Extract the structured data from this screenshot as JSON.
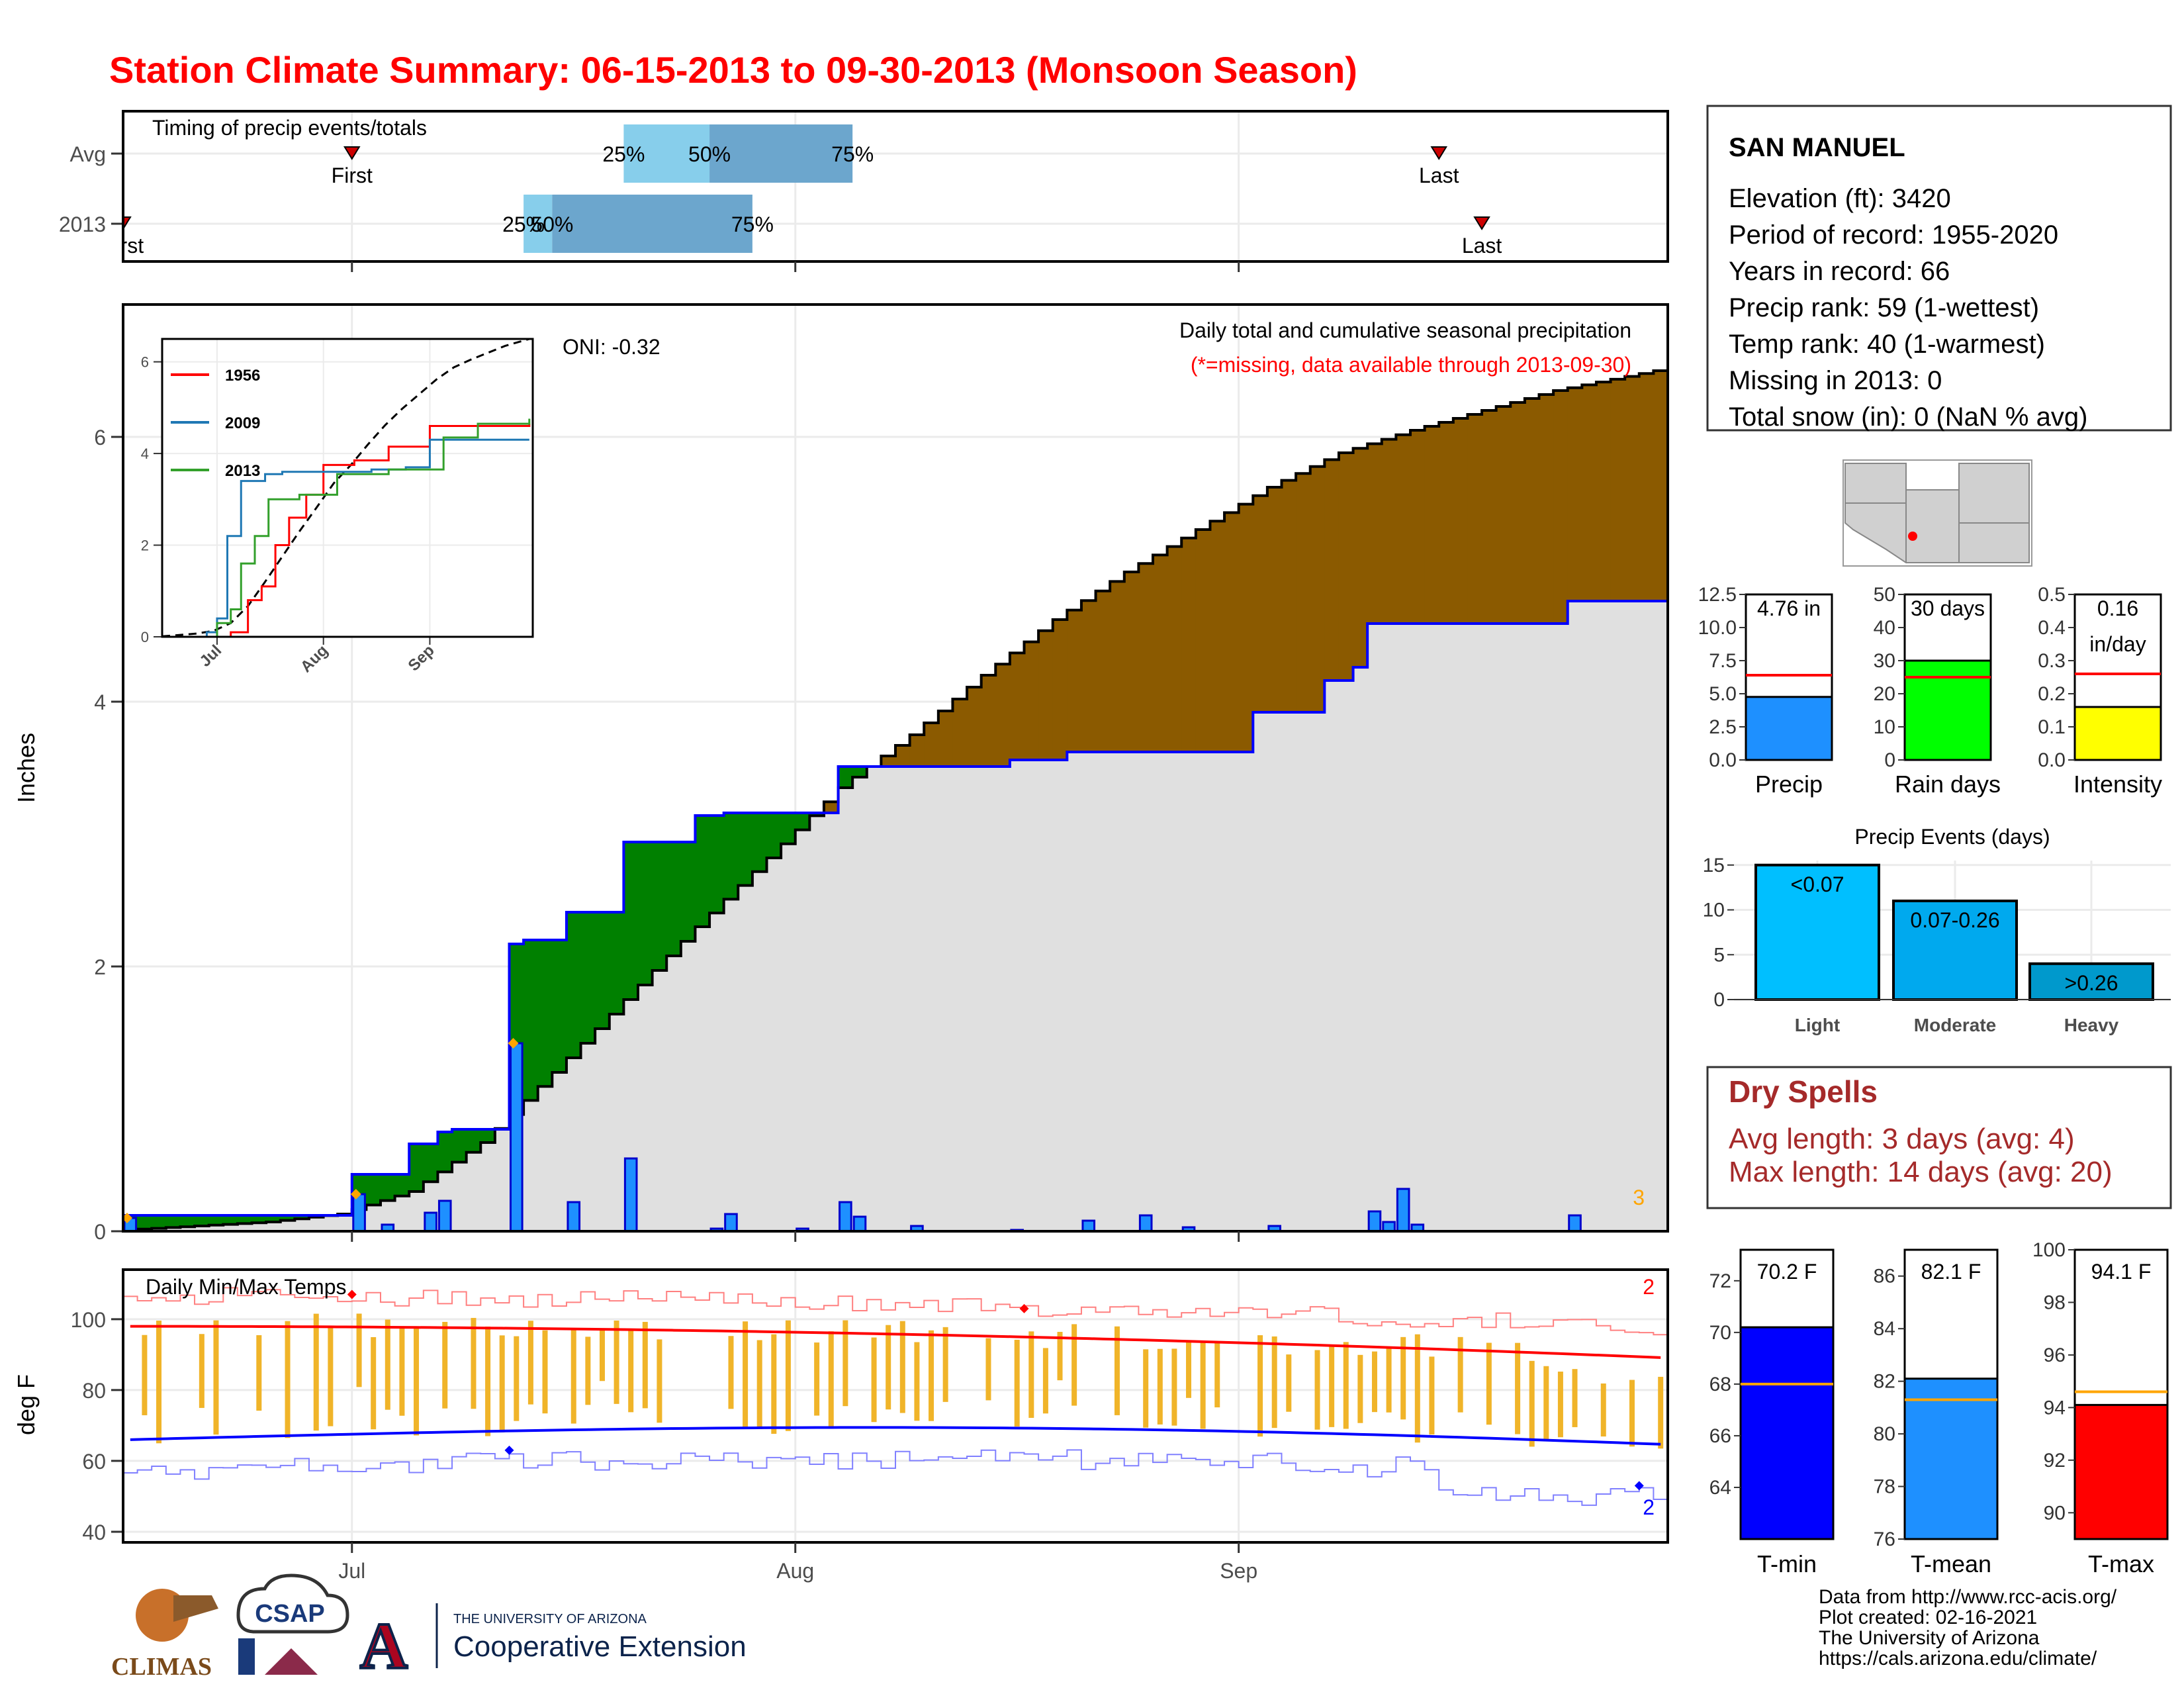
{
  "title": "Station Climate Summary: 06-15-2013 to 09-30-2013 (Monsoon Season)",
  "timing": {
    "label": "Timing of precip events/totals",
    "rows": [
      "Avg",
      "2013"
    ],
    "avg": {
      "first": "2013-07-01",
      "p25": "2013-07-20",
      "p50": "2013-07-26",
      "p75": "2013-08-05",
      "last": "2013-09-15"
    },
    "y2013": {
      "first": "2013-06-15",
      "p25": "2013-07-13",
      "p50": "2013-07-15",
      "p75": "2013-07-29",
      "last": "2013-09-18"
    },
    "labels": {
      "first": "First",
      "last": "Last",
      "p25": "25%",
      "p50": "50%",
      "p75": "75%"
    },
    "first_2013_text": "First",
    "colors": {
      "light": "#87ceeb",
      "dark": "#6ca6cd",
      "marker": "#cc0000"
    }
  },
  "precip_panel": {
    "ylabel": "Inches",
    "yticks": [
      "0",
      "2",
      "4",
      "6"
    ],
    "oni": "ONI: -0.32",
    "note1": "Daily total and cumulative seasonal precipitation",
    "note2": "(*=missing, data available through 2013-09-30)",
    "corner_count": "3",
    "colors": {
      "above": "#008000",
      "below": "#8b5a00",
      "fill": "#e0e0e0",
      "bars": "#1e90ff",
      "obs_line": "#0000ff"
    }
  },
  "inset": {
    "yticks": [
      "0",
      "2",
      "4",
      "6"
    ],
    "xticks": [
      "Jul",
      "Aug",
      "Sep"
    ],
    "legend": [
      "1956",
      "2009",
      "2013"
    ],
    "colors": [
      "#ff0000",
      "#1f78b4",
      "#33a02c"
    ]
  },
  "temp_panel": {
    "ylabel": "deg F",
    "title": "Daily Min/Max Temps",
    "yticks": [
      "40",
      "60",
      "80",
      "100"
    ],
    "xticks": [
      "Jul",
      "Aug",
      "Sep"
    ],
    "count_max": "2",
    "count_min": "2"
  },
  "station": {
    "name": "SAN MANUEL",
    "lines": [
      "Elevation (ft): 3420",
      "Period of record: 1955-2020",
      "Years in record: 66",
      "Precip rank: 59 (1-wettest)",
      "Temp rank: 40 (1-warmest)",
      "Missing in 2013: 0",
      "Total snow (in): 0 (NaN % avg)"
    ]
  },
  "small_bars": [
    {
      "label": "Precip",
      "value_text": "4.76 in",
      "value": 4.76,
      "avg": 6.4,
      "ymax": 12.5,
      "yticks": [
        "0.0",
        "2.5",
        "5.0",
        "7.5",
        "10.0",
        "12.5"
      ],
      "color": "#1e90ff"
    },
    {
      "label": "Rain days",
      "value_text": "30 days",
      "value": 30,
      "avg": 25,
      "ymax": 50,
      "yticks": [
        "0",
        "10",
        "20",
        "30",
        "40",
        "50"
      ],
      "color": "#00ff00"
    },
    {
      "label": "Intensity",
      "value_text": "0.16",
      "value_text2": "in/day",
      "value": 0.16,
      "avg": 0.26,
      "ymax": 0.5,
      "yticks": [
        "0.0",
        "0.1",
        "0.2",
        "0.3",
        "0.4",
        "0.5"
      ],
      "color": "#ffff00"
    }
  ],
  "precip_events": {
    "title": "Precip Events (days)",
    "yticks": [
      "0",
      "5",
      "10",
      "15"
    ],
    "categories": [
      "Light",
      "Moderate",
      "Heavy"
    ],
    "bar_labels": [
      "<0.07",
      "0.07-0.26",
      ">0.26"
    ],
    "values": [
      15,
      11,
      4
    ],
    "colors": [
      "#00bfff",
      "#00a9ee",
      "#0099cc"
    ]
  },
  "dry_spells": {
    "title": "Dry Spells",
    "avg_line": "Avg length: 3 days (avg: 4)",
    "max_line": "Max length: 14 days (avg: 20)"
  },
  "temp_bars": [
    {
      "label": "T-min",
      "value_text": "70.2 F",
      "value": 70.2,
      "avg": 68.0,
      "ymin": 62,
      "ymax": 73.2,
      "yticks": [
        "64",
        "66",
        "68",
        "70",
        "72"
      ],
      "color": "#0000ff"
    },
    {
      "label": "T-mean",
      "value_text": "82.1 F",
      "value": 82.1,
      "avg": 81.3,
      "ymin": 76,
      "ymax": 87.0,
      "yticks": [
        "76",
        "78",
        "80",
        "82",
        "84",
        "86"
      ],
      "color": "#1e90ff"
    },
    {
      "label": "T-max",
      "value_text": "94.1 F",
      "value": 94.1,
      "avg": 94.6,
      "ymin": 89,
      "ymax": 100.0,
      "yticks": [
        "90",
        "92",
        "94",
        "96",
        "98",
        "100"
      ],
      "color": "#ff0000"
    }
  ],
  "footer": [
    "Data from http://www.rcc-acis.org/",
    "Plot created: 02-16-2021",
    "The University of Arizona",
    "https://cals.arizona.edu/climate/"
  ],
  "logos": {
    "climas": "CLIMAS",
    "csap": "CSAP",
    "ua_small": "THE UNIVERSITY OF ARIZONA",
    "ua_big": "Cooperative Extension"
  },
  "chart_data": {
    "type": "area",
    "title": "Daily total and cumulative seasonal precipitation",
    "ylabel": "Inches",
    "xlabel": "",
    "ylim": [
      0,
      7.0
    ],
    "x_start": "2013-06-15",
    "x_end": "2013-09-30",
    "series": [
      {
        "name": "2013 cumulative",
        "x": [
          "2013-06-15",
          "2013-06-30",
          "2013-07-01",
          "2013-07-05",
          "2013-07-07",
          "2013-07-08",
          "2013-07-12",
          "2013-07-13",
          "2013-07-16",
          "2013-07-20",
          "2013-07-25",
          "2013-07-27",
          "2013-08-04",
          "2013-08-16",
          "2013-08-20",
          "2013-09-02",
          "2013-09-07",
          "2013-09-09",
          "2013-09-10",
          "2013-09-24",
          "2013-09-30"
        ],
        "values": [
          0.12,
          0.12,
          0.43,
          0.66,
          0.75,
          0.77,
          2.17,
          2.2,
          2.41,
          2.94,
          3.14,
          3.16,
          3.51,
          3.56,
          3.62,
          3.92,
          4.16,
          4.26,
          4.59,
          4.76,
          4.76
        ]
      },
      {
        "name": "Average cumulative",
        "x": [
          "2013-06-15",
          "2013-06-20",
          "2013-06-25",
          "2013-06-30",
          "2013-07-05",
          "2013-07-10",
          "2013-07-15",
          "2013-07-20",
          "2013-07-25",
          "2013-07-30",
          "2013-08-04",
          "2013-08-09",
          "2013-08-14",
          "2013-08-19",
          "2013-08-24",
          "2013-08-29",
          "2013-09-03",
          "2013-09-08",
          "2013-09-13",
          "2013-09-18",
          "2013-09-23",
          "2013-09-30"
        ],
        "values": [
          0.01,
          0.04,
          0.07,
          0.13,
          0.3,
          0.67,
          1.2,
          1.75,
          2.3,
          2.82,
          3.35,
          3.75,
          4.2,
          4.62,
          4.98,
          5.3,
          5.62,
          5.88,
          6.05,
          6.2,
          6.35,
          6.5
        ]
      },
      {
        "name": "Daily precip",
        "x": [
          "2013-06-15",
          "2013-07-01",
          "2013-07-03",
          "2013-07-06",
          "2013-07-07",
          "2013-07-12",
          "2013-07-16",
          "2013-07-20",
          "2013-07-26",
          "2013-07-27",
          "2013-08-01",
          "2013-08-04",
          "2013-08-05",
          "2013-08-09",
          "2013-08-16",
          "2013-08-21",
          "2013-08-25",
          "2013-08-28",
          "2013-09-03",
          "2013-09-10",
          "2013-09-11",
          "2013-09-12",
          "2013-09-13",
          "2013-09-24"
        ],
        "values": [
          0.1,
          0.28,
          0.05,
          0.14,
          0.23,
          1.42,
          0.22,
          0.55,
          0.02,
          0.13,
          0.02,
          0.22,
          0.11,
          0.04,
          0.01,
          0.08,
          0.12,
          0.03,
          0.04,
          0.15,
          0.07,
          0.32,
          0.05,
          0.12
        ]
      }
    ]
  }
}
